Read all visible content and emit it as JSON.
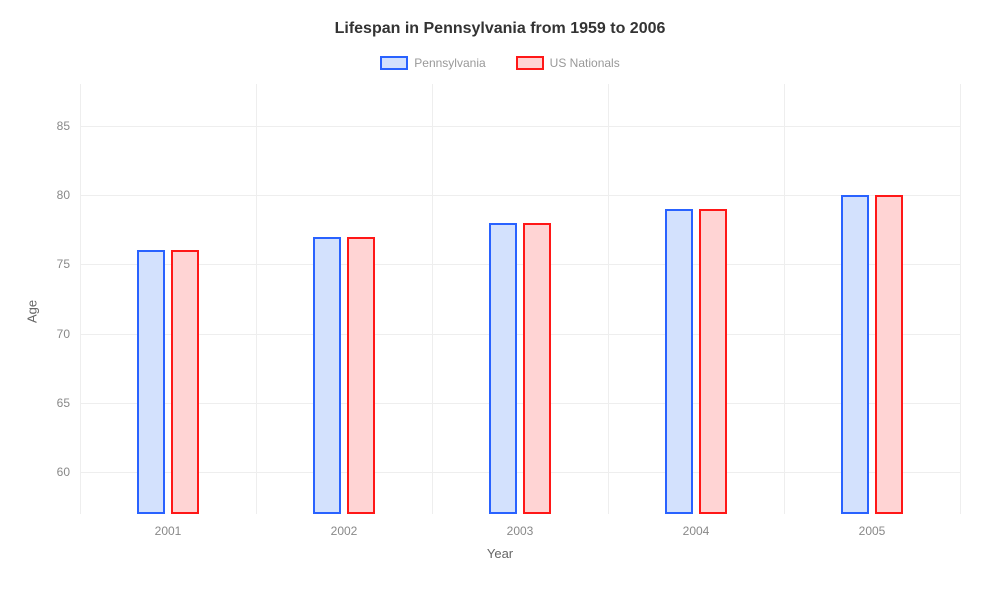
{
  "chart": {
    "type": "bar",
    "title": "Lifespan in Pennsylvania from 1959 to 2006",
    "title_fontsize": 16,
    "x_axis_label": "Year",
    "y_axis_label": "Age",
    "label_fontsize": 13,
    "tick_fontsize": 12,
    "background_color": "#ffffff",
    "grid_color": "#eeeeee",
    "tick_text_color": "#888888",
    "axis_label_color": "#666666",
    "categories": [
      "2001",
      "2002",
      "2003",
      "2004",
      "2005"
    ],
    "series": [
      {
        "name": "Pennsylvania",
        "stroke": "#2962ff",
        "fill": "#d3e1fd",
        "values": [
          76,
          77,
          78,
          79,
          80
        ]
      },
      {
        "name": "US Nationals",
        "stroke": "#ff1717",
        "fill": "#ffd4d4",
        "values": [
          76,
          77,
          78,
          79,
          80
        ]
      }
    ],
    "y_min": 57,
    "y_max": 88,
    "y_ticks": [
      60,
      65,
      70,
      75,
      80,
      85
    ],
    "bar_width_pct": 3.2,
    "bar_gap_pct": 0.6,
    "group_positions_pct": [
      10,
      30,
      50,
      70,
      90
    ],
    "v_grid_positions_pct": [
      0,
      20,
      40,
      60,
      80,
      100
    ],
    "legend_swatch_width": 28,
    "legend_swatch_height": 14
  }
}
